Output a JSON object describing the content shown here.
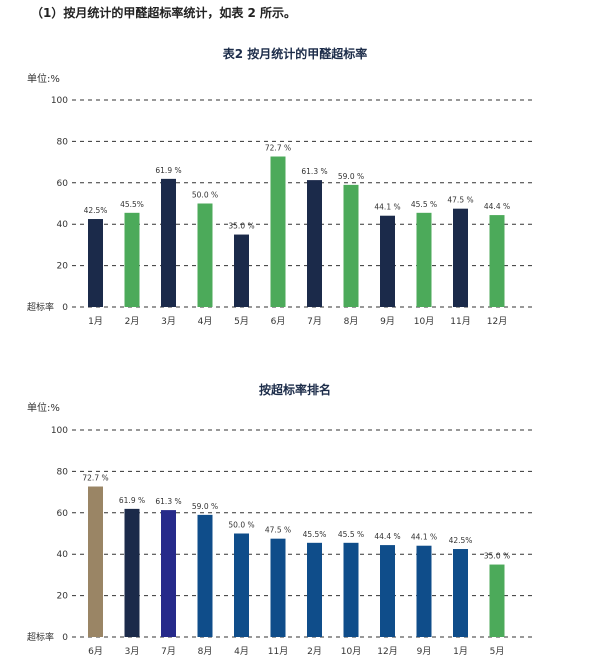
{
  "intro": "（1）按月统计的甲醛超标率统计，如表 2 所示。",
  "chart_data": [
    {
      "type": "bar",
      "title": "表2 按月统计的甲醛超标率",
      "unit_label": "单位:%",
      "ylabel": "超标率",
      "ylim": [
        0,
        100
      ],
      "yticks": [
        0,
        20,
        40,
        60,
        80,
        100
      ],
      "grid": true,
      "categories": [
        "1月",
        "2月",
        "3月",
        "4月",
        "5月",
        "6月",
        "7月",
        "8月",
        "9月",
        "10月",
        "11月",
        "12月"
      ],
      "values": [
        42.5,
        45.5,
        61.9,
        50.0,
        35.0,
        72.7,
        61.3,
        59.0,
        44.1,
        45.5,
        47.5,
        44.4
      ],
      "value_labels": [
        "42.5%",
        "45.5%",
        "61.9 %",
        "50.0 %",
        "35.0 %",
        "72.7 %",
        "61.3 %",
        "59.0 %",
        "44.1 %",
        "45.5 %",
        "47.5 %",
        "44.4 %"
      ],
      "colors": [
        "#1b2a4a",
        "#4caa5a",
        "#1b2a4a",
        "#4caa5a",
        "#1b2a4a",
        "#4caa5a",
        "#1b2a4a",
        "#4caa5a",
        "#1b2a4a",
        "#4caa5a",
        "#1b2a4a",
        "#4caa5a"
      ]
    },
    {
      "type": "bar",
      "title": "按超标率排名",
      "unit_label": "单位:%",
      "ylabel": "超标率",
      "ylim": [
        0,
        100
      ],
      "yticks": [
        0,
        20,
        40,
        60,
        80,
        100
      ],
      "grid": true,
      "categories": [
        "6月",
        "3月",
        "7月",
        "8月",
        "4月",
        "11月",
        "2月",
        "10月",
        "12月",
        "9月",
        "1月",
        "5月"
      ],
      "values": [
        72.7,
        61.9,
        61.3,
        59.0,
        50.0,
        47.5,
        45.5,
        45.5,
        44.4,
        44.1,
        42.5,
        35.0
      ],
      "value_labels": [
        "72.7 %",
        "61.9 %",
        "61.3 %",
        "59.0 %",
        "50.0 %",
        "47.5 %",
        "45.5%",
        "45.5 %",
        "44.4 %",
        "44.1 %",
        "42.5%",
        "35.0 %"
      ],
      "colors": [
        "#9a8565",
        "#1b2a4a",
        "#262a8a",
        "#0f4d8a",
        "#0f4d8a",
        "#0f4d8a",
        "#0f4d8a",
        "#0f4d8a",
        "#0f4d8a",
        "#0f4d8a",
        "#0f4d8a",
        "#4caa5a"
      ]
    }
  ]
}
